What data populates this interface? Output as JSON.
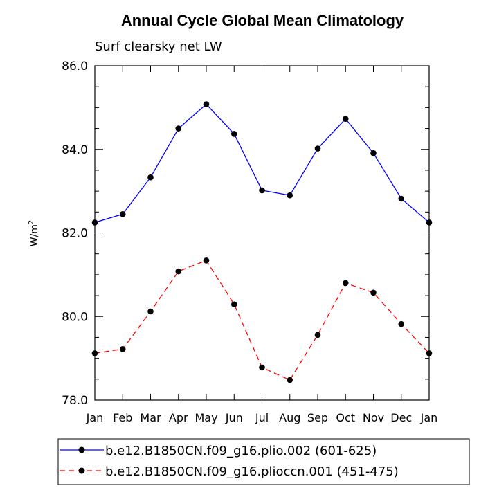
{
  "chart_data": {
    "type": "line",
    "title": "Annual Cycle Global Mean Climatology",
    "subtitle": "Surf clearsky net LW",
    "ylabel_base": "W/m",
    "ylabel_sup": "2",
    "categories": [
      "Jan",
      "Feb",
      "Mar",
      "Apr",
      "May",
      "Jun",
      "Jul",
      "Aug",
      "Sep",
      "Oct",
      "Nov",
      "Dec",
      "Jan"
    ],
    "ylim": [
      78.0,
      86.0
    ],
    "yticks": [
      "78.0",
      "80.0",
      "82.0",
      "84.0",
      "86.0"
    ],
    "ytick_values": [
      78.0,
      80.0,
      82.0,
      84.0,
      86.0
    ],
    "series": [
      {
        "name": "b.e12.B1850CN.f09_g16.plio.002 (601-625)",
        "color": "#0000ff",
        "dashed": false,
        "values": [
          82.25,
          82.45,
          83.33,
          84.5,
          85.08,
          84.37,
          83.02,
          82.9,
          84.02,
          84.73,
          83.91,
          82.82,
          82.25
        ]
      },
      {
        "name": "b.e12.B1850CN.f09_g16.plioccn.001 (451-475)",
        "color": "#ff0000",
        "dashed": true,
        "values": [
          79.12,
          79.22,
          80.12,
          81.08,
          81.34,
          80.29,
          78.78,
          78.48,
          79.56,
          80.8,
          80.57,
          79.82,
          79.12
        ]
      }
    ],
    "legend_position": "bottom"
  }
}
